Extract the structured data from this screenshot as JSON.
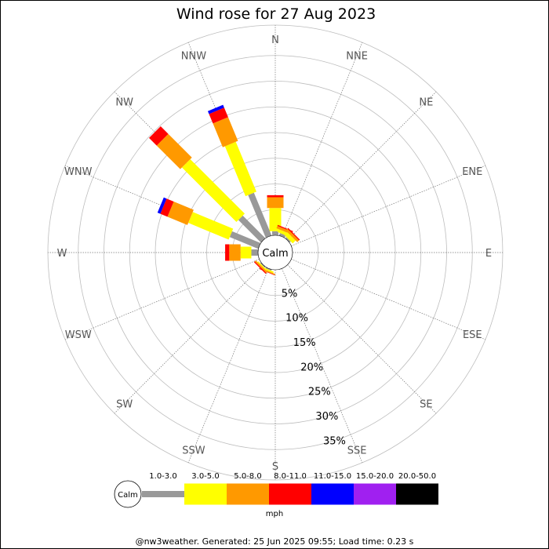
{
  "chart_data": {
    "type": "wind-rose",
    "title": "Wind rose for 27 Aug 2023",
    "calm_label": "Calm",
    "directions": [
      "N",
      "NNE",
      "NE",
      "ENE",
      "E",
      "ESE",
      "SE",
      "SSE",
      "S",
      "SSW",
      "SW",
      "WSW",
      "W",
      "WNW",
      "NW",
      "NNW"
    ],
    "radial_ticks": [
      {
        "value": 5,
        "label": "5%"
      },
      {
        "value": 10,
        "label": "10%"
      },
      {
        "value": 15,
        "label": "15%"
      },
      {
        "value": 20,
        "label": "20%"
      },
      {
        "value": 25,
        "label": "25%"
      },
      {
        "value": 30,
        "label": "30%"
      },
      {
        "value": 35,
        "label": "35%"
      }
    ],
    "rlim": [
      0,
      40
    ],
    "speed_unit": "mph",
    "speed_bins": [
      {
        "label": "1.0-3.0",
        "color": "#999999"
      },
      {
        "label": "3.0-5.0",
        "color": "#ffff00"
      },
      {
        "label": "5.0-8.0",
        "color": "#ff9900"
      },
      {
        "label": "8.0-11.0",
        "color": "#ff0000"
      },
      {
        "label": "11.0-15.0",
        "color": "#0000ff"
      },
      {
        "label": "15.0-20.0",
        "color": "#a020f0"
      },
      {
        "label": "20.0-50.0",
        "color": "#000000"
      }
    ],
    "series": [
      {
        "direction": "N",
        "values": [
          0.8,
          4.5,
          2.1,
          0.4,
          0,
          0,
          0
        ]
      },
      {
        "direction": "NNE",
        "values": [
          0.5,
          0.6,
          0.5,
          0.2,
          0,
          0,
          0
        ]
      },
      {
        "direction": "NE",
        "values": [
          0.3,
          0.8,
          0.5,
          0.2,
          0,
          0,
          0
        ]
      },
      {
        "direction": "SSW",
        "values": [
          0.2,
          0.3,
          0.2,
          0.1,
          0,
          0,
          0
        ]
      },
      {
        "direction": "SW",
        "values": [
          0.2,
          0.2,
          0.3,
          0.2,
          0,
          0,
          0
        ]
      },
      {
        "direction": "W",
        "values": [
          1.3,
          2.1,
          2.2,
          0.8,
          0,
          0,
          0
        ]
      },
      {
        "direction": "WNW",
        "values": [
          6.0,
          8.5,
          4.2,
          1.5,
          0.6,
          0,
          0
        ]
      },
      {
        "direction": "NW",
        "values": [
          6.2,
          15.0,
          6.5,
          2.1,
          0,
          0,
          0
        ]
      },
      {
        "direction": "NNW",
        "values": [
          9.0,
          10.5,
          5.0,
          2.0,
          0.6,
          0,
          0
        ]
      }
    ],
    "grid": true,
    "legend_placement": "bottom"
  },
  "footer": "@nw3weather. Generated: 25 Jun 2025 09:55; Load time: 0.23 s"
}
